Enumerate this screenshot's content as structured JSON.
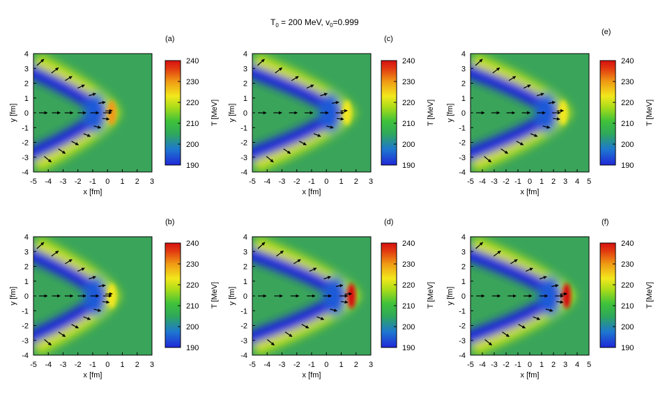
{
  "figure": {
    "title_main": "T",
    "title_sub0": "0",
    "title_mid": " = 200 MeV, v",
    "title_sub1": "0",
    "title_end": "=0.999"
  },
  "colors": {
    "background_green": "#3aa55a",
    "colormap": [
      "#1f28d8",
      "#1e78d0",
      "#2fa85a",
      "#3fc23a",
      "#a8dc1a",
      "#f2e81c",
      "#f09a14",
      "#e23c10",
      "#d61010"
    ]
  },
  "chart_data": [
    {
      "type": "heatmap",
      "panel_label": "(a)",
      "xlabel": "x [fm]",
      "ylabel": "y [fm]",
      "xlim": [
        -5,
        3
      ],
      "ylim": [
        -4,
        4
      ],
      "xticks": [
        "-5",
        "-4",
        "-3",
        "-2",
        "-1",
        "0",
        "1",
        "2",
        "3"
      ],
      "yticks": [
        "4",
        "3",
        "2",
        "1",
        "0",
        "-1",
        "-2",
        "-3",
        "-4"
      ],
      "colorbar": {
        "label": "T [MeV]",
        "range": [
          190,
          240
        ],
        "ticks": [
          "240",
          "230",
          "220",
          "210",
          "200",
          "190"
        ]
      },
      "front_x": 0.2,
      "peak_T": 226,
      "arrows": "velocity vectors"
    },
    {
      "type": "heatmap",
      "panel_label": "(b)",
      "xlabel": "x [fm]",
      "ylabel": "y [fm]",
      "xlim": [
        -5,
        3
      ],
      "ylim": [
        -4,
        4
      ],
      "xticks": [
        "-5",
        "-4",
        "-3",
        "-2",
        "-1",
        "0",
        "1",
        "2",
        "3"
      ],
      "yticks": [
        "4",
        "3",
        "2",
        "1",
        "0",
        "-1",
        "-2",
        "-3",
        "-4"
      ],
      "colorbar": {
        "label": "T [MeV]",
        "range": [
          190,
          240
        ],
        "ticks": [
          "240",
          "230",
          "220",
          "210",
          "200",
          "190"
        ]
      },
      "front_x": 0.2,
      "peak_T": 222,
      "arrows": "velocity vectors"
    },
    {
      "type": "heatmap",
      "panel_label": "(c)",
      "xlabel": "x [fm]",
      "ylabel": "y [fm]",
      "xlim": [
        -5,
        3
      ],
      "ylim": [
        -4,
        4
      ],
      "xticks": [
        "-5",
        "-4",
        "-3",
        "-2",
        "-1",
        "0",
        "1",
        "2",
        "3"
      ],
      "yticks": [
        "4",
        "3",
        "2",
        "1",
        "0",
        "-1",
        "-2",
        "-3",
        "-4"
      ],
      "colorbar": {
        "label": "T [MeV]",
        "range": [
          190,
          240
        ],
        "ticks": [
          "240",
          "230",
          "220",
          "210",
          "200",
          "190"
        ]
      },
      "front_x": 1.3,
      "peak_T": 224,
      "arrows": "velocity vectors"
    },
    {
      "type": "heatmap",
      "panel_label": "(d)",
      "xlabel": "x [fm]",
      "ylabel": "y [fm]",
      "xlim": [
        -5,
        3
      ],
      "ylim": [
        -4,
        4
      ],
      "xticks": [
        "-5",
        "-4",
        "-3",
        "-2",
        "-1",
        "0",
        "1",
        "2",
        "3"
      ],
      "yticks": [
        "4",
        "3",
        "2",
        "1",
        "0",
        "-1",
        "-2",
        "-3",
        "-4"
      ],
      "colorbar": {
        "label": "T [MeV]",
        "range": [
          190,
          240
        ],
        "ticks": [
          "240",
          "230",
          "220",
          "210",
          "200",
          "190"
        ]
      },
      "front_x": 1.6,
      "peak_T": 240,
      "arrows": "velocity vectors"
    },
    {
      "type": "heatmap",
      "panel_label": "(e)",
      "xlabel": "x [fm]",
      "ylabel": "y [fm]",
      "xlim": [
        -5,
        5
      ],
      "ylim": [
        -4,
        4
      ],
      "xticks": [
        "-5",
        "-4",
        "-3",
        "-2",
        "-1",
        "0",
        "1",
        "2",
        "3",
        "4",
        "5"
      ],
      "yticks": [
        "4",
        "3",
        "2",
        "1",
        "0",
        "-1",
        "-2",
        "-3",
        "-4"
      ],
      "colorbar": {
        "label": "T [MeV]",
        "range": [
          190,
          240
        ],
        "ticks": [
          "240",
          "230",
          "220",
          "210",
          "200",
          "190"
        ]
      },
      "front_x": 2.7,
      "peak_T": 222,
      "arrows": "velocity vectors"
    },
    {
      "type": "heatmap",
      "panel_label": "(f)",
      "xlabel": "x [fm]",
      "ylabel": "y [fm]",
      "xlim": [
        -5,
        5
      ],
      "ylim": [
        -4,
        4
      ],
      "xticks": [
        "-5",
        "-4",
        "-3",
        "-2",
        "-1",
        "0",
        "1",
        "2",
        "3",
        "4",
        "5"
      ],
      "yticks": [
        "4",
        "3",
        "2",
        "1",
        "0",
        "-1",
        "-2",
        "-3",
        "-4"
      ],
      "colorbar": {
        "label": "T [MeV]",
        "range": [
          190,
          240
        ],
        "ticks": [
          "240",
          "230",
          "220",
          "210",
          "200",
          "190"
        ]
      },
      "front_x": 3.0,
      "peak_T": 240,
      "arrows": "velocity vectors"
    }
  ]
}
